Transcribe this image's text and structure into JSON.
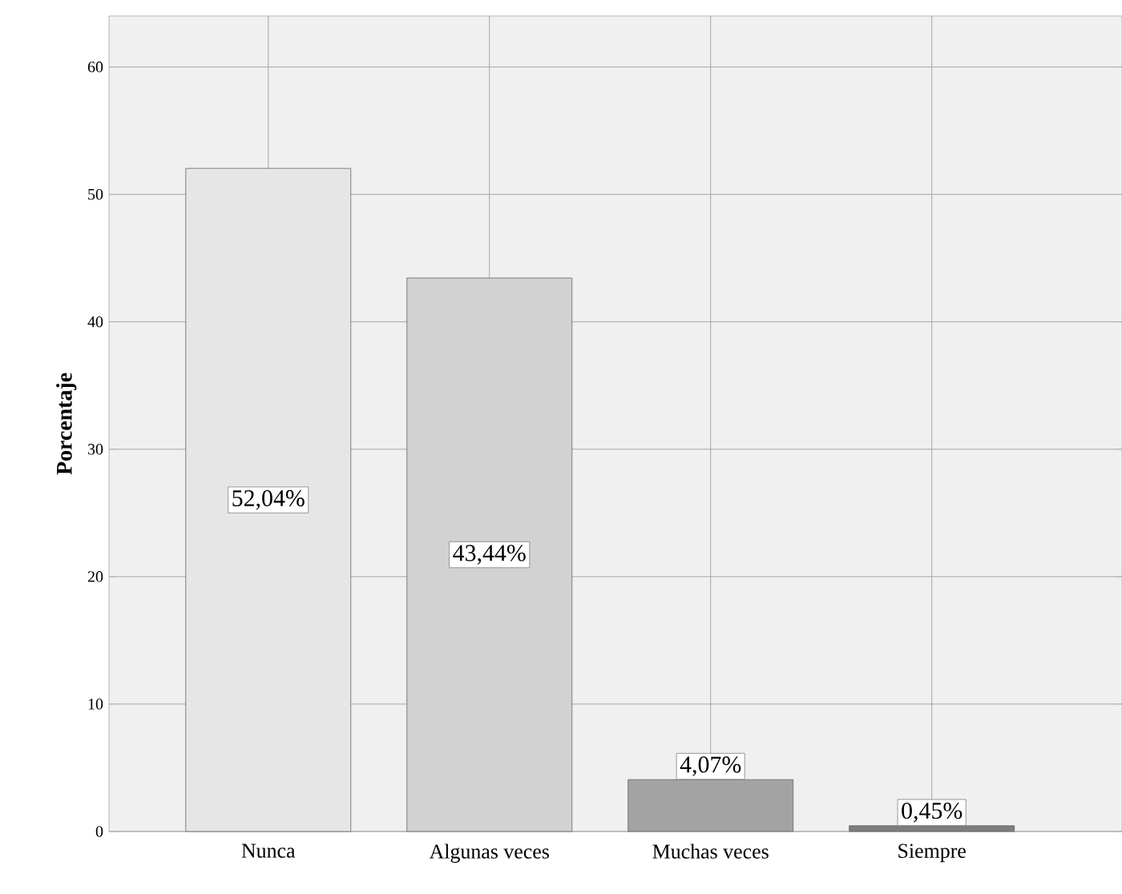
{
  "chart_data": {
    "type": "bar",
    "ylabel": "**Porcentaje**",
    "categories": [
      "Nunca",
      "Algunas veces",
      "Muchas veces",
      "Siempre"
    ],
    "values": [
      52.04,
      43.44,
      4.07,
      0.45
    ],
    "value_labels": [
      "52,04%",
      "43,44%",
      "4,07%",
      "0,45%"
    ],
    "colors": [
      "#e6e6e6",
      "#d2d2d2",
      "#a3a3a3",
      "#7d7d7d"
    ],
    "ylim": [
      0,
      64
    ],
    "yticks": [
      0,
      10,
      20,
      30,
      40,
      50,
      60
    ],
    "grid": true
  }
}
